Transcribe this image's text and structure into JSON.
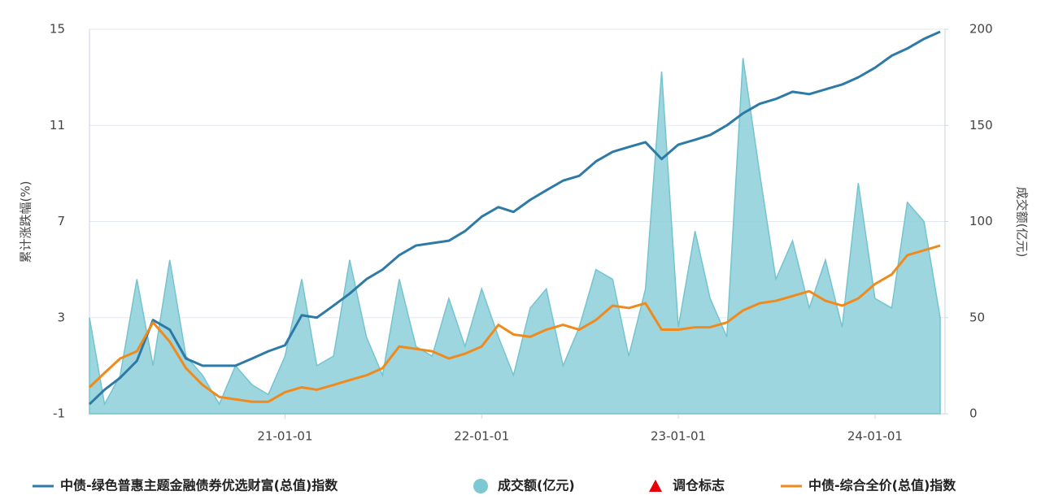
{
  "chart_data": {
    "type": "line",
    "y_label": "累计涨跌幅(%)",
    "y2_label": "成交额(亿元)",
    "x": [
      "20-01-04",
      "20-02-01",
      "20-03-01",
      "20-04-01",
      "20-05-01",
      "20-06-01",
      "20-07-01",
      "20-08-01",
      "20-09-01",
      "20-10-01",
      "20-11-01",
      "20-12-01",
      "21-01-01",
      "21-02-01",
      "21-03-01",
      "21-04-01",
      "21-05-01",
      "21-06-01",
      "21-07-01",
      "21-08-01",
      "21-09-01",
      "21-10-01",
      "21-11-01",
      "21-12-01",
      "22-01-01",
      "22-02-01",
      "22-03-01",
      "22-04-01",
      "22-05-01",
      "22-06-01",
      "22-07-01",
      "22-08-01",
      "22-09-01",
      "22-10-01",
      "22-11-01",
      "22-12-01",
      "23-01-01",
      "23-02-01",
      "23-03-01",
      "23-04-01",
      "23-05-01",
      "23-06-01",
      "23-07-01",
      "23-08-01",
      "23-09-01",
      "23-10-01",
      "23-11-01",
      "23-12-01",
      "24-01-01",
      "24-02-01",
      "24-03-01",
      "24-04-01",
      "24-05-01"
    ],
    "xlim": [
      "20-01-04",
      "24-05-10"
    ],
    "xticks": [
      "21-01-01",
      "22-01-01",
      "23-01-01",
      "24-01-01"
    ],
    "ylim": [
      -1,
      15
    ],
    "yticks": [
      -1,
      3,
      7,
      11,
      15
    ],
    "y2lim": [
      0,
      200
    ],
    "y2ticks": [
      0,
      50,
      100,
      150,
      200
    ],
    "grid": true,
    "series": [
      {
        "name": "中债-绿色普惠主题金融债券优选财富(总值)指数",
        "color": "#2e7aa6",
        "kind": "line",
        "values": [
          -0.6,
          0.0,
          0.5,
          1.2,
          2.9,
          2.5,
          1.3,
          1.0,
          1.0,
          1.0,
          1.3,
          1.6,
          1.85,
          3.1,
          3.0,
          3.5,
          4.0,
          4.6,
          5.0,
          5.6,
          6.0,
          6.1,
          6.2,
          6.6,
          7.2,
          7.6,
          7.4,
          7.9,
          8.3,
          8.7,
          8.9,
          9.5,
          9.9,
          10.1,
          10.3,
          9.6,
          10.2,
          10.4,
          10.6,
          11.0,
          11.5,
          11.9,
          12.1,
          12.4,
          12.3,
          12.5,
          12.7,
          13.0,
          13.4,
          13.9,
          14.2,
          14.6,
          14.9
        ]
      },
      {
        "name": "成交额(亿元)",
        "color": "#8ccfd9",
        "kind": "area",
        "axis": "y2",
        "values": [
          50,
          5,
          20,
          70,
          25,
          80,
          30,
          20,
          5,
          25,
          15,
          10,
          30,
          70,
          25,
          30,
          80,
          40,
          20,
          70,
          35,
          30,
          60,
          35,
          65,
          40,
          20,
          55,
          65,
          25,
          45,
          75,
          70,
          30,
          65,
          178,
          45,
          95,
          60,
          40,
          185,
          125,
          70,
          90,
          55,
          80,
          45,
          120,
          60,
          55,
          110,
          100,
          50
        ]
      },
      {
        "name": "调仓标志",
        "color": "#e8000b",
        "kind": "marker",
        "values": [
          null,
          null,
          null,
          null,
          null,
          null,
          null,
          null,
          null,
          null,
          null,
          null,
          null,
          null,
          null,
          null,
          null,
          null,
          null,
          null,
          null,
          null,
          null,
          null,
          null,
          null,
          null,
          null,
          null,
          null,
          null,
          null,
          null,
          null,
          null,
          null,
          null,
          null,
          null,
          null,
          null,
          null,
          null,
          null,
          null,
          null,
          null,
          null,
          null,
          null,
          null,
          null,
          null
        ]
      },
      {
        "name": "中债-综合全价(总值)指数",
        "color": "#f08a1c",
        "kind": "line",
        "values": [
          0.1,
          0.7,
          1.3,
          1.6,
          2.8,
          2.0,
          0.9,
          0.2,
          -0.3,
          -0.4,
          -0.5,
          -0.5,
          -0.1,
          0.1,
          0.0,
          0.2,
          0.4,
          0.6,
          0.9,
          1.8,
          1.7,
          1.6,
          1.3,
          1.5,
          1.8,
          2.7,
          2.3,
          2.2,
          2.5,
          2.7,
          2.5,
          2.9,
          3.5,
          3.4,
          3.6,
          2.5,
          2.5,
          2.6,
          2.6,
          2.8,
          3.3,
          3.6,
          3.7,
          3.9,
          4.1,
          3.7,
          3.5,
          3.8,
          4.4,
          4.8,
          5.6,
          5.8,
          6.0
        ]
      }
    ]
  }
}
